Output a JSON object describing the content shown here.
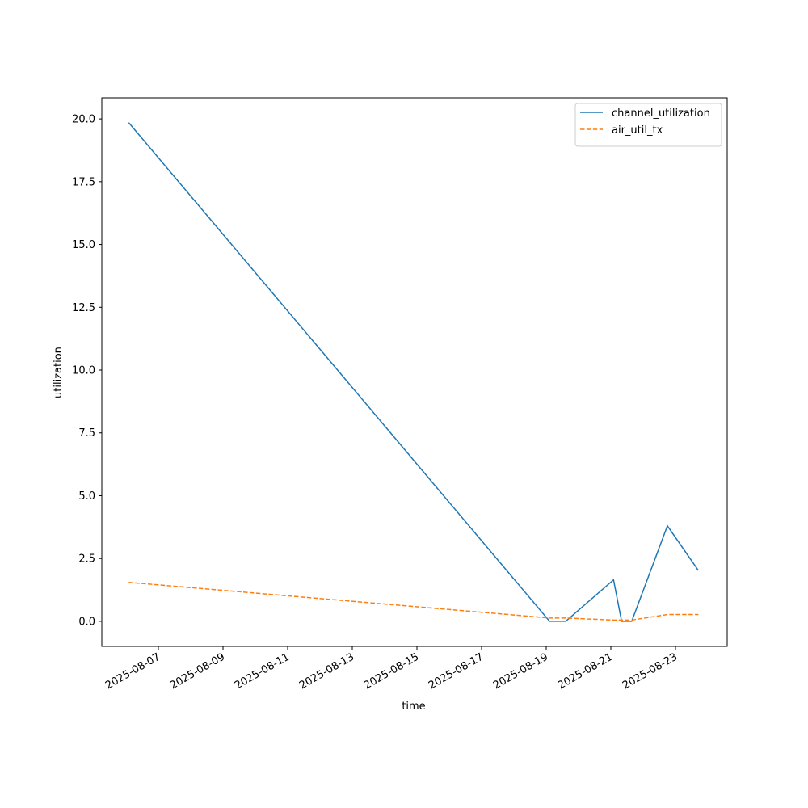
{
  "chart_data": {
    "type": "line",
    "xlabel": "time",
    "ylabel": "utilization",
    "x": [
      "2025-08-06T02:00",
      "2025-08-19T02:30",
      "2025-08-19T14:30",
      "2025-08-21T02:00",
      "2025-08-21T08:00",
      "2025-08-21T15:30",
      "2025-08-22T18:00",
      "2025-08-23T17:00"
    ],
    "series": [
      {
        "name": "channel_utilization",
        "color": "#1f77b4",
        "dash": "solid",
        "values": [
          19.85,
          0,
          0,
          1.65,
          0,
          0,
          3.8,
          2.02
        ]
      },
      {
        "name": "air_util_tx",
        "color": "#ff7f0e",
        "dash": "dashed",
        "values": [
          1.55,
          0.13,
          0.13,
          0.05,
          0.05,
          0.05,
          0.27,
          0.27
        ]
      }
    ],
    "xlim": [
      "2025-08-05T06:00",
      "2025-08-24T14:24"
    ],
    "xticks": [
      "2025-08-07",
      "2025-08-09",
      "2025-08-11",
      "2025-08-13",
      "2025-08-15",
      "2025-08-17",
      "2025-08-19",
      "2025-08-21",
      "2025-08-23"
    ],
    "ylim": [
      -1.0,
      20.84
    ],
    "yticks": [
      {
        "value": 0,
        "label": "0.0"
      },
      2.5,
      {
        "value": 5,
        "label": "5.0"
      },
      7.5,
      {
        "value": 10,
        "label": "10.0"
      },
      12.5,
      {
        "value": 15,
        "label": "15.0"
      },
      17.5,
      {
        "value": 20,
        "label": "20.0"
      }
    ],
    "legend": "upper right",
    "grid": false
  }
}
